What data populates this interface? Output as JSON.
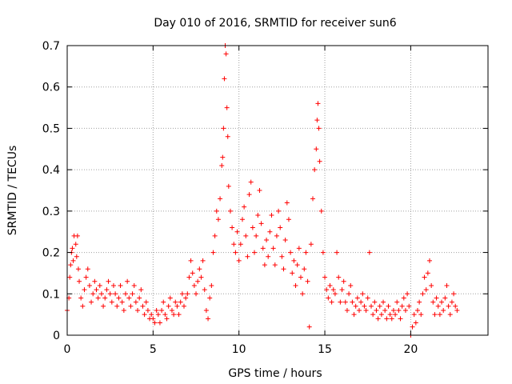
{
  "chart_data": {
    "type": "scatter",
    "title": "Day 010 of 2016, SRMTID for receiver sun6",
    "xlabel": "GPS time / hours",
    "ylabel": "SRMTID / TECUs",
    "xlim": [
      0,
      24.5
    ],
    "ylim": [
      0,
      0.7
    ],
    "xticks": [
      "0",
      "5",
      "10",
      "15",
      "20"
    ],
    "xtick_values": [
      0,
      5,
      10,
      15,
      20
    ],
    "yticks": [
      "0",
      "0.1",
      "0.2",
      "0.3",
      "0.4",
      "0.5",
      "0.6",
      "0.7"
    ],
    "ytick_values": [
      0,
      0.1,
      0.2,
      0.3,
      0.4,
      0.5,
      0.6,
      0.7
    ],
    "grid": true,
    "marker": "plus",
    "color": "#ff0000",
    "series": [
      {
        "name": "SRMTID",
        "points": [
          [
            0.0,
            0.06
          ],
          [
            0.1,
            0.09
          ],
          [
            0.15,
            0.14
          ],
          [
            0.2,
            0.17
          ],
          [
            0.25,
            0.2
          ],
          [
            0.3,
            0.21
          ],
          [
            0.35,
            0.18
          ],
          [
            0.4,
            0.24
          ],
          [
            0.5,
            0.22
          ],
          [
            0.55,
            0.19
          ],
          [
            0.6,
            0.24
          ],
          [
            0.65,
            0.16
          ],
          [
            0.7,
            0.13
          ],
          [
            0.8,
            0.09
          ],
          [
            0.9,
            0.07
          ],
          [
            1.0,
            0.11
          ],
          [
            1.1,
            0.14
          ],
          [
            1.2,
            0.16
          ],
          [
            1.3,
            0.12
          ],
          [
            1.4,
            0.08
          ],
          [
            1.5,
            0.1
          ],
          [
            1.6,
            0.13
          ],
          [
            1.7,
            0.11
          ],
          [
            1.8,
            0.09
          ],
          [
            1.9,
            0.12
          ],
          [
            2.0,
            0.1
          ],
          [
            2.1,
            0.07
          ],
          [
            2.2,
            0.09
          ],
          [
            2.3,
            0.11
          ],
          [
            2.4,
            0.13
          ],
          [
            2.5,
            0.1
          ],
          [
            2.6,
            0.08
          ],
          [
            2.7,
            0.12
          ],
          [
            2.8,
            0.1
          ],
          [
            2.9,
            0.07
          ],
          [
            3.0,
            0.09
          ],
          [
            3.1,
            0.12
          ],
          [
            3.2,
            0.08
          ],
          [
            3.3,
            0.06
          ],
          [
            3.4,
            0.1
          ],
          [
            3.5,
            0.13
          ],
          [
            3.6,
            0.09
          ],
          [
            3.7,
            0.07
          ],
          [
            3.8,
            0.1
          ],
          [
            3.9,
            0.12
          ],
          [
            4.0,
            0.08
          ],
          [
            4.1,
            0.06
          ],
          [
            4.2,
            0.09
          ],
          [
            4.3,
            0.11
          ],
          [
            4.4,
            0.07
          ],
          [
            4.5,
            0.05
          ],
          [
            4.6,
            0.08
          ],
          [
            4.7,
            0.06
          ],
          [
            4.8,
            0.04
          ],
          [
            4.9,
            0.05
          ],
          [
            5.0,
            0.04
          ],
          [
            5.1,
            0.03
          ],
          [
            5.2,
            0.06
          ],
          [
            5.3,
            0.05
          ],
          [
            5.4,
            0.03
          ],
          [
            5.5,
            0.06
          ],
          [
            5.6,
            0.08
          ],
          [
            5.7,
            0.05
          ],
          [
            5.8,
            0.04
          ],
          [
            5.9,
            0.07
          ],
          [
            6.0,
            0.09
          ],
          [
            6.1,
            0.06
          ],
          [
            6.2,
            0.05
          ],
          [
            6.3,
            0.08
          ],
          [
            6.4,
            0.07
          ],
          [
            6.5,
            0.05
          ],
          [
            6.6,
            0.08
          ],
          [
            6.7,
            0.1
          ],
          [
            6.8,
            0.07
          ],
          [
            6.9,
            0.09
          ],
          [
            7.0,
            0.1
          ],
          [
            7.1,
            0.14
          ],
          [
            7.2,
            0.18
          ],
          [
            7.3,
            0.15
          ],
          [
            7.4,
            0.12
          ],
          [
            7.5,
            0.1
          ],
          [
            7.6,
            0.13
          ],
          [
            7.7,
            0.16
          ],
          [
            7.8,
            0.14
          ],
          [
            7.9,
            0.18
          ],
          [
            8.0,
            0.11
          ],
          [
            8.1,
            0.06
          ],
          [
            8.2,
            0.04
          ],
          [
            8.3,
            0.09
          ],
          [
            8.4,
            0.12
          ],
          [
            8.5,
            0.2
          ],
          [
            8.6,
            0.24
          ],
          [
            8.7,
            0.3
          ],
          [
            8.8,
            0.28
          ],
          [
            8.9,
            0.33
          ],
          [
            9.0,
            0.41
          ],
          [
            9.05,
            0.43
          ],
          [
            9.1,
            0.5
          ],
          [
            9.15,
            0.62
          ],
          [
            9.2,
            0.7
          ],
          [
            9.25,
            0.68
          ],
          [
            9.3,
            0.55
          ],
          [
            9.35,
            0.48
          ],
          [
            9.4,
            0.36
          ],
          [
            9.5,
            0.3
          ],
          [
            9.6,
            0.26
          ],
          [
            9.7,
            0.22
          ],
          [
            9.8,
            0.2
          ],
          [
            9.9,
            0.25
          ],
          [
            10.0,
            0.18
          ],
          [
            10.1,
            0.22
          ],
          [
            10.2,
            0.28
          ],
          [
            10.3,
            0.31
          ],
          [
            10.4,
            0.24
          ],
          [
            10.5,
            0.19
          ],
          [
            10.6,
            0.34
          ],
          [
            10.7,
            0.37
          ],
          [
            10.8,
            0.26
          ],
          [
            10.9,
            0.2
          ],
          [
            11.0,
            0.24
          ],
          [
            11.1,
            0.29
          ],
          [
            11.2,
            0.35
          ],
          [
            11.3,
            0.27
          ],
          [
            11.4,
            0.21
          ],
          [
            11.5,
            0.17
          ],
          [
            11.6,
            0.23
          ],
          [
            11.7,
            0.19
          ],
          [
            11.8,
            0.25
          ],
          [
            11.9,
            0.29
          ],
          [
            12.0,
            0.21
          ],
          [
            12.1,
            0.17
          ],
          [
            12.2,
            0.24
          ],
          [
            12.3,
            0.3
          ],
          [
            12.4,
            0.26
          ],
          [
            12.5,
            0.19
          ],
          [
            12.6,
            0.16
          ],
          [
            12.7,
            0.23
          ],
          [
            12.8,
            0.32
          ],
          [
            12.9,
            0.28
          ],
          [
            13.0,
            0.2
          ],
          [
            13.1,
            0.15
          ],
          [
            13.2,
            0.18
          ],
          [
            13.3,
            0.12
          ],
          [
            13.4,
            0.17
          ],
          [
            13.5,
            0.21
          ],
          [
            13.6,
            0.14
          ],
          [
            13.7,
            0.1
          ],
          [
            13.8,
            0.16
          ],
          [
            13.9,
            0.2
          ],
          [
            14.0,
            0.13
          ],
          [
            14.1,
            0.02
          ],
          [
            14.2,
            0.22
          ],
          [
            14.3,
            0.33
          ],
          [
            14.4,
            0.4
          ],
          [
            14.5,
            0.45
          ],
          [
            14.55,
            0.52
          ],
          [
            14.6,
            0.56
          ],
          [
            14.65,
            0.5
          ],
          [
            14.7,
            0.42
          ],
          [
            14.8,
            0.3
          ],
          [
            14.9,
            0.2
          ],
          [
            15.0,
            0.14
          ],
          [
            15.1,
            0.11
          ],
          [
            15.2,
            0.09
          ],
          [
            15.3,
            0.12
          ],
          [
            15.4,
            0.08
          ],
          [
            15.5,
            0.11
          ],
          [
            15.6,
            0.1
          ],
          [
            15.7,
            0.2
          ],
          [
            15.8,
            0.14
          ],
          [
            15.9,
            0.08
          ],
          [
            16.0,
            0.11
          ],
          [
            16.1,
            0.13
          ],
          [
            16.2,
            0.08
          ],
          [
            16.3,
            0.06
          ],
          [
            16.4,
            0.1
          ],
          [
            16.5,
            0.12
          ],
          [
            16.6,
            0.08
          ],
          [
            16.7,
            0.05
          ],
          [
            16.8,
            0.07
          ],
          [
            16.9,
            0.09
          ],
          [
            17.0,
            0.06
          ],
          [
            17.1,
            0.08
          ],
          [
            17.2,
            0.1
          ],
          [
            17.3,
            0.07
          ],
          [
            17.4,
            0.06
          ],
          [
            17.5,
            0.09
          ],
          [
            17.6,
            0.2
          ],
          [
            17.7,
            0.07
          ],
          [
            17.8,
            0.05
          ],
          [
            17.9,
            0.08
          ],
          [
            18.0,
            0.06
          ],
          [
            18.1,
            0.04
          ],
          [
            18.2,
            0.07
          ],
          [
            18.3,
            0.05
          ],
          [
            18.4,
            0.08
          ],
          [
            18.5,
            0.06
          ],
          [
            18.6,
            0.04
          ],
          [
            18.7,
            0.07
          ],
          [
            18.8,
            0.05
          ],
          [
            18.9,
            0.04
          ],
          [
            19.0,
            0.06
          ],
          [
            19.1,
            0.05
          ],
          [
            19.2,
            0.08
          ],
          [
            19.3,
            0.06
          ],
          [
            19.4,
            0.04
          ],
          [
            19.5,
            0.07
          ],
          [
            19.6,
            0.09
          ],
          [
            19.7,
            0.06
          ],
          [
            19.8,
            0.1
          ],
          [
            19.9,
            0.07
          ],
          [
            20.0,
            0.0
          ],
          [
            20.1,
            0.02
          ],
          [
            20.2,
            0.05
          ],
          [
            20.3,
            0.03
          ],
          [
            20.4,
            0.06
          ],
          [
            20.5,
            0.08
          ],
          [
            20.6,
            0.05
          ],
          [
            20.7,
            0.1
          ],
          [
            20.8,
            0.14
          ],
          [
            20.9,
            0.11
          ],
          [
            21.0,
            0.15
          ],
          [
            21.1,
            0.18
          ],
          [
            21.2,
            0.12
          ],
          [
            21.3,
            0.08
          ],
          [
            21.4,
            0.05
          ],
          [
            21.5,
            0.09
          ],
          [
            21.6,
            0.07
          ],
          [
            21.7,
            0.05
          ],
          [
            21.8,
            0.08
          ],
          [
            21.9,
            0.06
          ],
          [
            22.0,
            0.09
          ],
          [
            22.1,
            0.12
          ],
          [
            22.2,
            0.07
          ],
          [
            22.3,
            0.05
          ],
          [
            22.4,
            0.08
          ],
          [
            22.5,
            0.1
          ],
          [
            22.6,
            0.07
          ],
          [
            22.7,
            0.06
          ]
        ]
      }
    ]
  }
}
